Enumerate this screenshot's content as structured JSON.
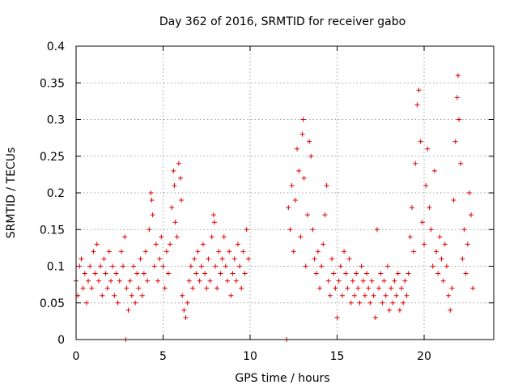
{
  "chart_data": {
    "type": "scatter",
    "title": "Day 362 of 2016, SRMTID for receiver gabo",
    "xlabel": "GPS time / hours",
    "ylabel": "SRMTID / TECUs",
    "xlim": [
      0,
      24
    ],
    "ylim": [
      0,
      0.4
    ],
    "xticks": [
      0,
      5,
      10,
      15,
      20
    ],
    "yticks": [
      0,
      0.05,
      0.1,
      0.15,
      0.2,
      0.25,
      0.3,
      0.35,
      0.4
    ],
    "ytick_labels": [
      "0",
      "0.05",
      "0.1",
      "0.15",
      "0.2",
      "0.25",
      "0.3",
      "0.35",
      "0.4"
    ],
    "marker": "+",
    "color": "#e00000",
    "grid": true,
    "series": [
      {
        "name": "SRMTID",
        "points": [
          [
            0.0,
            0.08
          ],
          [
            0.1,
            0.06
          ],
          [
            0.2,
            0.1
          ],
          [
            0.3,
            0.11
          ],
          [
            0.4,
            0.07
          ],
          [
            0.5,
            0.09
          ],
          [
            0.6,
            0.05
          ],
          [
            0.7,
            0.08
          ],
          [
            0.8,
            0.1
          ],
          [
            0.9,
            0.07
          ],
          [
            1.0,
            0.12
          ],
          [
            1.1,
            0.09
          ],
          [
            1.2,
            0.13
          ],
          [
            1.3,
            0.08
          ],
          [
            1.4,
            0.1
          ],
          [
            1.5,
            0.06
          ],
          [
            1.6,
            0.11
          ],
          [
            1.7,
            0.09
          ],
          [
            1.8,
            0.07
          ],
          [
            1.9,
            0.12
          ],
          [
            2.0,
            0.08
          ],
          [
            2.1,
            0.1
          ],
          [
            2.2,
            0.06
          ],
          [
            2.3,
            0.09
          ],
          [
            2.4,
            0.05
          ],
          [
            2.5,
            0.08
          ],
          [
            2.6,
            0.12
          ],
          [
            2.7,
            0.1
          ],
          [
            2.8,
            0.14
          ],
          [
            2.9,
            0.07
          ],
          [
            3.0,
            0.04
          ],
          [
            3.1,
            0.08
          ],
          [
            3.2,
            0.06
          ],
          [
            3.3,
            0.1
          ],
          [
            3.4,
            0.05
          ],
          [
            3.5,
            0.09
          ],
          [
            3.6,
            0.07
          ],
          [
            3.7,
            0.11
          ],
          [
            3.8,
            0.06
          ],
          [
            3.9,
            0.09
          ],
          [
            4.0,
            0.12
          ],
          [
            4.1,
            0.08
          ],
          [
            4.2,
            0.15
          ],
          [
            4.3,
            0.2
          ],
          [
            4.35,
            0.19
          ],
          [
            4.4,
            0.17
          ],
          [
            4.5,
            0.1
          ],
          [
            4.6,
            0.13
          ],
          [
            4.7,
            0.08
          ],
          [
            4.8,
            0.11
          ],
          [
            4.9,
            0.14
          ],
          [
            5.0,
            0.1
          ],
          [
            5.1,
            0.07
          ],
          [
            5.2,
            0.12
          ],
          [
            5.3,
            0.09
          ],
          [
            5.4,
            0.13
          ],
          [
            5.5,
            0.18
          ],
          [
            5.6,
            0.23
          ],
          [
            5.65,
            0.21
          ],
          [
            5.7,
            0.16
          ],
          [
            5.8,
            0.14
          ],
          [
            5.9,
            0.24
          ],
          [
            6.0,
            0.22
          ],
          [
            6.05,
            0.19
          ],
          [
            6.1,
            0.06
          ],
          [
            6.2,
            0.04
          ],
          [
            6.3,
            0.03
          ],
          [
            6.4,
            0.05
          ],
          [
            6.5,
            0.08
          ],
          [
            6.6,
            0.1
          ],
          [
            6.7,
            0.07
          ],
          [
            6.8,
            0.11
          ],
          [
            6.9,
            0.09
          ],
          [
            7.0,
            0.12
          ],
          [
            7.1,
            0.08
          ],
          [
            7.2,
            0.1
          ],
          [
            7.3,
            0.13
          ],
          [
            7.4,
            0.09
          ],
          [
            7.5,
            0.07
          ],
          [
            7.6,
            0.11
          ],
          [
            7.7,
            0.08
          ],
          [
            7.8,
            0.14
          ],
          [
            7.9,
            0.17
          ],
          [
            7.95,
            0.16
          ],
          [
            8.0,
            0.1
          ],
          [
            8.1,
            0.07
          ],
          [
            8.2,
            0.12
          ],
          [
            8.3,
            0.09
          ],
          [
            8.4,
            0.11
          ],
          [
            8.5,
            0.14
          ],
          [
            8.6,
            0.1
          ],
          [
            8.7,
            0.08
          ],
          [
            8.8,
            0.12
          ],
          [
            8.9,
            0.06
          ],
          [
            9.0,
            0.09
          ],
          [
            9.1,
            0.11
          ],
          [
            9.2,
            0.08
          ],
          [
            9.3,
            0.13
          ],
          [
            9.4,
            0.1
          ],
          [
            9.5,
            0.07
          ],
          [
            9.6,
            0.12
          ],
          [
            9.7,
            0.09
          ],
          [
            9.8,
            0.15
          ],
          [
            9.9,
            0.11
          ],
          [
            2.85,
            0.0
          ],
          [
            12.1,
            0.0
          ],
          [
            12.2,
            0.18
          ],
          [
            12.3,
            0.15
          ],
          [
            12.4,
            0.21
          ],
          [
            12.5,
            0.12
          ],
          [
            12.6,
            0.19
          ],
          [
            12.7,
            0.26
          ],
          [
            12.8,
            0.23
          ],
          [
            12.9,
            0.14
          ],
          [
            13.0,
            0.28
          ],
          [
            13.05,
            0.3
          ],
          [
            13.1,
            0.22
          ],
          [
            13.2,
            0.1
          ],
          [
            13.3,
            0.17
          ],
          [
            13.4,
            0.27
          ],
          [
            13.5,
            0.25
          ],
          [
            13.6,
            0.15
          ],
          [
            13.7,
            0.11
          ],
          [
            13.8,
            0.09
          ],
          [
            13.9,
            0.12
          ],
          [
            14.0,
            0.07
          ],
          [
            14.1,
            0.1
          ],
          [
            14.2,
            0.13
          ],
          [
            14.3,
            0.17
          ],
          [
            14.4,
            0.21
          ],
          [
            14.5,
            0.08
          ],
          [
            14.6,
            0.06
          ],
          [
            14.7,
            0.11
          ],
          [
            14.8,
            0.09
          ],
          [
            14.9,
            0.07
          ],
          [
            15.0,
            0.03
          ],
          [
            15.1,
            0.08
          ],
          [
            15.2,
            0.1
          ],
          [
            15.3,
            0.06
          ],
          [
            15.4,
            0.12
          ],
          [
            15.5,
            0.09
          ],
          [
            15.6,
            0.07
          ],
          [
            15.7,
            0.11
          ],
          [
            15.8,
            0.05
          ],
          [
            15.9,
            0.08
          ],
          [
            16.0,
            0.06
          ],
          [
            16.1,
            0.09
          ],
          [
            16.2,
            0.07
          ],
          [
            16.3,
            0.05
          ],
          [
            16.4,
            0.1
          ],
          [
            16.5,
            0.08
          ],
          [
            16.6,
            0.06
          ],
          [
            16.7,
            0.09
          ],
          [
            16.8,
            0.07
          ],
          [
            16.9,
            0.05
          ],
          [
            17.0,
            0.08
          ],
          [
            17.1,
            0.06
          ],
          [
            17.2,
            0.03
          ],
          [
            17.3,
            0.15
          ],
          [
            17.4,
            0.07
          ],
          [
            17.5,
            0.09
          ],
          [
            17.6,
            0.05
          ],
          [
            17.7,
            0.08
          ],
          [
            17.8,
            0.06
          ],
          [
            17.9,
            0.1
          ],
          [
            18.0,
            0.04
          ],
          [
            18.1,
            0.07
          ],
          [
            18.2,
            0.05
          ],
          [
            18.3,
            0.08
          ],
          [
            18.4,
            0.06
          ],
          [
            18.5,
            0.09
          ],
          [
            18.6,
            0.04
          ],
          [
            18.7,
            0.07
          ],
          [
            18.8,
            0.05
          ],
          [
            18.9,
            0.08
          ],
          [
            19.0,
            0.06
          ],
          [
            19.1,
            0.09
          ],
          [
            19.2,
            0.14
          ],
          [
            19.3,
            0.18
          ],
          [
            19.4,
            0.12
          ],
          [
            19.5,
            0.24
          ],
          [
            19.6,
            0.32
          ],
          [
            19.7,
            0.34
          ],
          [
            19.8,
            0.27
          ],
          [
            19.9,
            0.16
          ],
          [
            20.0,
            0.13
          ],
          [
            20.1,
            0.21
          ],
          [
            20.2,
            0.26
          ],
          [
            20.3,
            0.18
          ],
          [
            20.4,
            0.15
          ],
          [
            20.5,
            0.1
          ],
          [
            20.6,
            0.23
          ],
          [
            20.7,
            0.12
          ],
          [
            20.8,
            0.09
          ],
          [
            20.9,
            0.14
          ],
          [
            21.0,
            0.11
          ],
          [
            21.1,
            0.08
          ],
          [
            21.2,
            0.13
          ],
          [
            21.3,
            0.1
          ],
          [
            21.4,
            0.06
          ],
          [
            21.5,
            0.04
          ],
          [
            21.6,
            0.07
          ],
          [
            21.7,
            0.19
          ],
          [
            21.8,
            0.27
          ],
          [
            21.9,
            0.33
          ],
          [
            21.95,
            0.36
          ],
          [
            22.0,
            0.3
          ],
          [
            22.1,
            0.24
          ],
          [
            22.2,
            0.11
          ],
          [
            22.3,
            0.15
          ],
          [
            22.4,
            0.09
          ],
          [
            22.5,
            0.13
          ],
          [
            22.6,
            0.2
          ],
          [
            22.7,
            0.17
          ],
          [
            22.8,
            0.07
          ]
        ]
      }
    ]
  }
}
